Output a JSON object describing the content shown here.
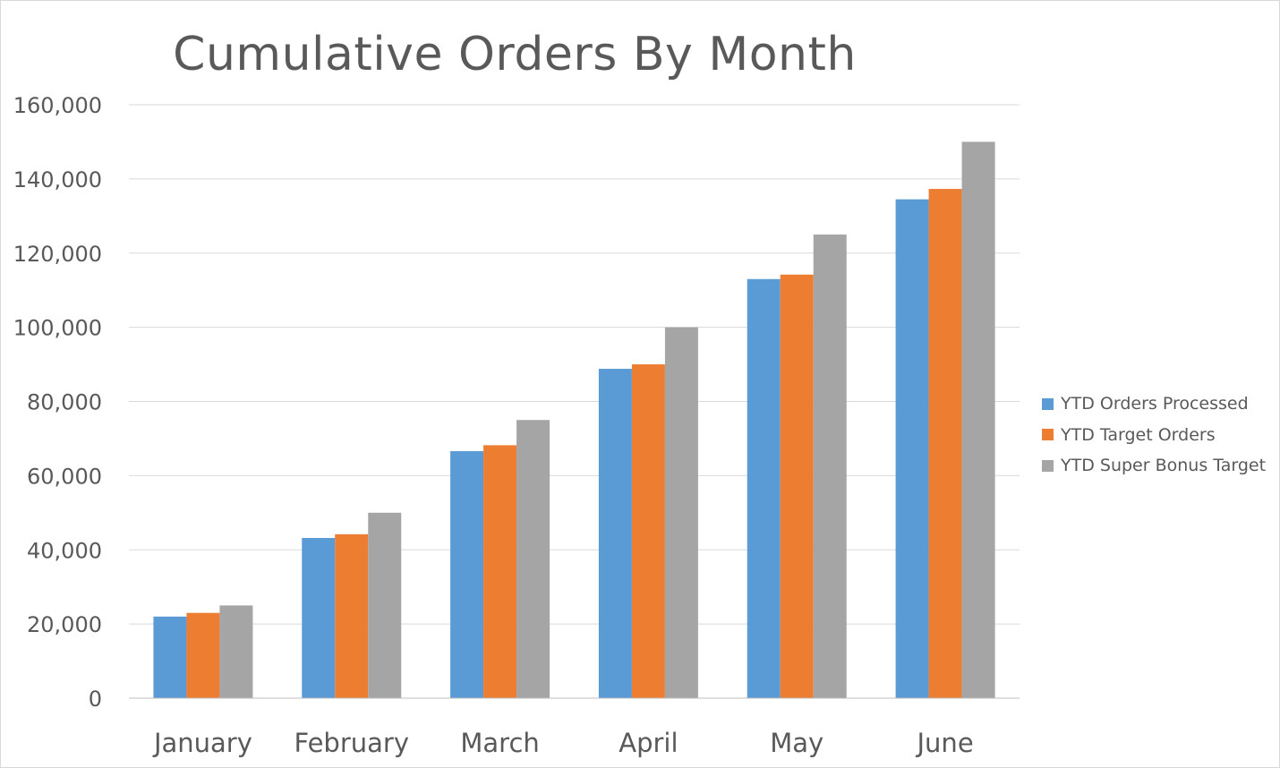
{
  "colors": {
    "series_1": "#5b9bd5",
    "series_2": "#ed7d31",
    "series_3": "#a5a5a5",
    "gridline": "#d9d9d9",
    "axis": "#bfbfbf",
    "text": "#595959"
  },
  "chart_data": {
    "type": "bar",
    "title": "Cumulative Orders By Month",
    "xlabel": "",
    "ylabel": "",
    "categories": [
      "January",
      "February",
      "March",
      "April",
      "May",
      "June"
    ],
    "series": [
      {
        "name": "YTD Orders Processed",
        "values": [
          22000,
          43200,
          66600,
          88800,
          113000,
          134500
        ]
      },
      {
        "name": "YTD Target Orders",
        "values": [
          23000,
          44200,
          68200,
          90000,
          114200,
          137300
        ]
      },
      {
        "name": "YTD Super Bonus Target",
        "values": [
          25000,
          50000,
          75000,
          100000,
          125000,
          150000
        ]
      }
    ],
    "ylim": [
      0,
      160000
    ],
    "yticks": [
      0,
      20000,
      40000,
      60000,
      80000,
      100000,
      120000,
      140000,
      160000
    ],
    "ytick_labels": [
      "0",
      "20,000",
      "40,000",
      "60,000",
      "80,000",
      "100,000",
      "120,000",
      "140,000",
      "160,000"
    ],
    "grid": true,
    "legend_position": "right"
  }
}
